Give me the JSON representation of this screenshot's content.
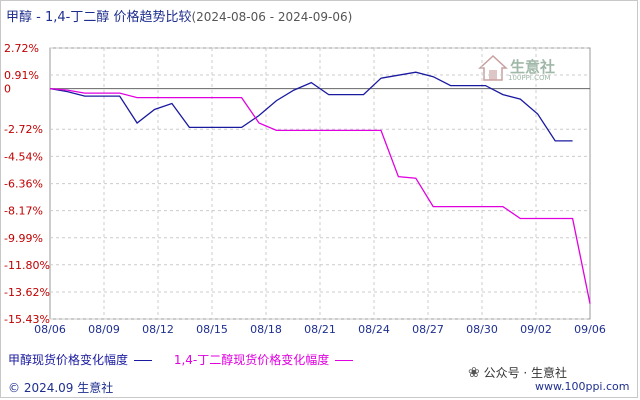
{
  "title": {
    "main": "甲醇 - 1,4-丁二醇 价格趋势比较",
    "range": "(2024-08-06 - 2024-09-06)"
  },
  "chart_data": {
    "type": "line",
    "y_ticks": [
      "2.72%",
      "0.91%",
      "0",
      "-2.72%",
      "-4.54%",
      "-6.36%",
      "-8.17%",
      "-9.99%",
      "-11.80%",
      "-13.62%",
      "-15.43%"
    ],
    "y_tick_values": [
      2.72,
      0.91,
      0,
      -2.72,
      -4.54,
      -6.36,
      -8.17,
      -9.99,
      -11.8,
      -13.62,
      -15.43
    ],
    "ylim": [
      -15.43,
      2.72
    ],
    "x_ticks": [
      "08/06",
      "08/09",
      "08/12",
      "08/15",
      "08/18",
      "08/21",
      "08/24",
      "08/27",
      "08/30",
      "09/02",
      "09/06"
    ],
    "grid": true,
    "legend_position": "bottom",
    "series": [
      {
        "name": "甲醇现货价格变化幅度",
        "color": "#1a1aa0",
        "points": [
          [
            0,
            0
          ],
          [
            1,
            -0.2
          ],
          [
            2,
            -0.5
          ],
          [
            3,
            -0.5
          ],
          [
            4,
            -0.5
          ],
          [
            5,
            -2.3
          ],
          [
            6,
            -1.4
          ],
          [
            7,
            -1.0
          ],
          [
            8,
            -2.6
          ],
          [
            9,
            -2.6
          ],
          [
            10,
            -2.6
          ],
          [
            11,
            -2.6
          ],
          [
            12,
            -1.8
          ],
          [
            13,
            -0.8
          ],
          [
            14,
            -0.1
          ],
          [
            15,
            0.4
          ],
          [
            16,
            -0.4
          ],
          [
            17,
            -0.4
          ],
          [
            18,
            -0.4
          ],
          [
            19,
            0.7
          ],
          [
            20,
            0.9
          ],
          [
            21,
            1.1
          ],
          [
            22,
            0.8
          ],
          [
            23,
            0.2
          ],
          [
            24,
            0.2
          ],
          [
            25,
            0.2
          ],
          [
            26,
            -0.4
          ],
          [
            27,
            -0.7
          ],
          [
            28,
            -1.7
          ],
          [
            29,
            -3.5
          ],
          [
            30,
            -3.5
          ]
        ]
      },
      {
        "name": "1,4-丁二醇现货价格变化幅度",
        "color": "#e000e0",
        "points": [
          [
            0,
            0
          ],
          [
            1,
            -0.1
          ],
          [
            2,
            -0.3
          ],
          [
            3,
            -0.3
          ],
          [
            4,
            -0.3
          ],
          [
            5,
            -0.6
          ],
          [
            6,
            -0.6
          ],
          [
            7,
            -0.6
          ],
          [
            8,
            -0.6
          ],
          [
            9,
            -0.6
          ],
          [
            10,
            -0.6
          ],
          [
            11,
            -0.6
          ],
          [
            12,
            -2.3
          ],
          [
            13,
            -2.8
          ],
          [
            14,
            -2.8
          ],
          [
            15,
            -2.8
          ],
          [
            16,
            -2.8
          ],
          [
            17,
            -2.8
          ],
          [
            18,
            -2.8
          ],
          [
            19,
            -2.8
          ],
          [
            20,
            -5.9
          ],
          [
            21,
            -6.0
          ],
          [
            22,
            -7.9
          ],
          [
            23,
            -7.9
          ],
          [
            24,
            -7.9
          ],
          [
            25,
            -7.9
          ],
          [
            26,
            -7.9
          ],
          [
            27,
            -8.7
          ],
          [
            28,
            -8.7
          ],
          [
            29,
            -8.7
          ],
          [
            30,
            -8.7
          ],
          [
            31,
            -14.4
          ]
        ]
      }
    ]
  },
  "legend": {
    "items": [
      {
        "label": "甲醇现货价格变化幅度",
        "color": "#1a1aa0"
      },
      {
        "label": "1,4-丁二醇现货价格变化幅度",
        "color": "#e000e0"
      }
    ]
  },
  "footer": {
    "copyright": "© 2024.09 生意社",
    "wechat": "公众号 · 生意社",
    "url": "www.100ppi.com"
  },
  "watermark": {
    "text": "生意社",
    "url": "100PPI.COM"
  }
}
